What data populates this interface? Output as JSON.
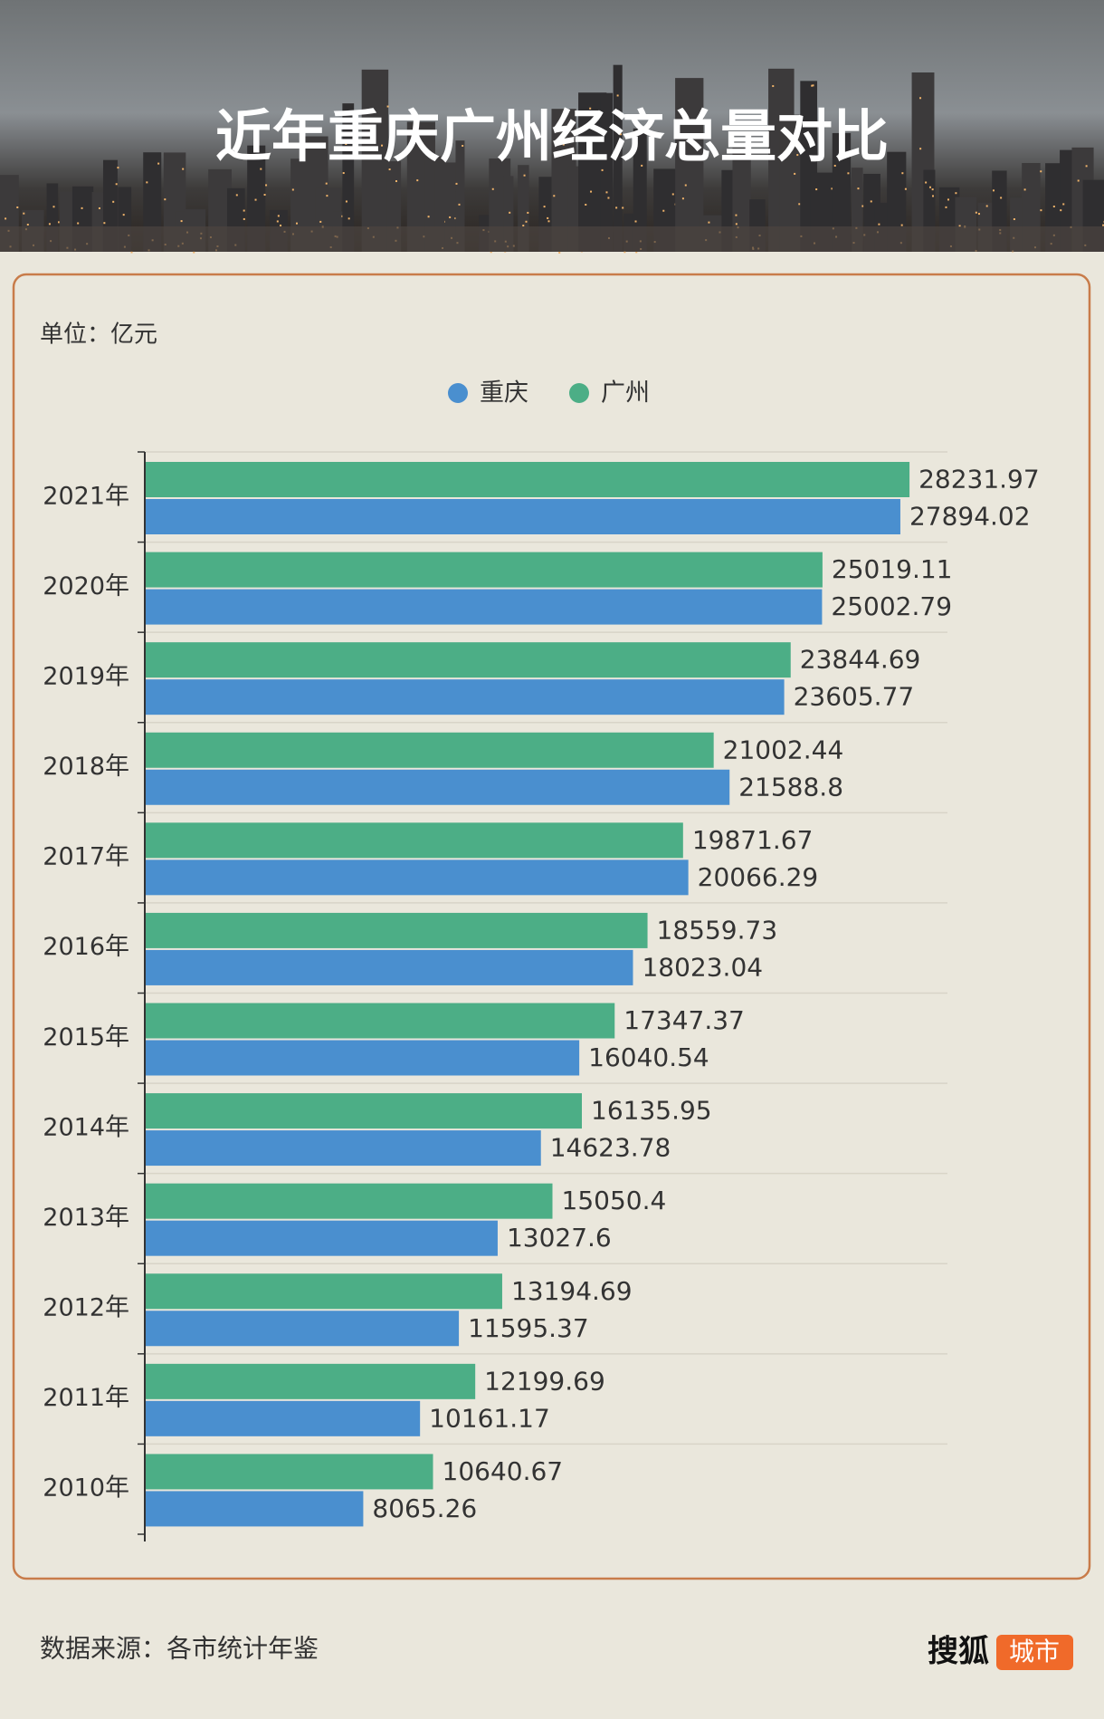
{
  "chart_data": {
    "type": "hbar",
    "title": "近年重庆广州经济总量对比",
    "unit": "单位：亿元",
    "categories": [
      "2021年",
      "2020年",
      "2019年",
      "2018年",
      "2017年",
      "2016年",
      "2015年",
      "2014年",
      "2013年",
      "2012年",
      "2011年",
      "2010年"
    ],
    "series": [
      {
        "name": "重庆",
        "color": "#4a8fcf",
        "values": [
          27894.02,
          25002.79,
          23605.77,
          21588.8,
          20066.29,
          18023.04,
          16040.54,
          14623.78,
          13027.6,
          11595.37,
          10161.17,
          8065.26
        ]
      },
      {
        "name": "广州",
        "color": "#4cae86",
        "values": [
          28231.97,
          25019.11,
          23844.69,
          21002.44,
          19871.67,
          18559.73,
          17347.37,
          16135.95,
          15050.4,
          13194.69,
          12199.69,
          10640.67
        ]
      }
    ],
    "xlim": [
      0,
      30000
    ],
    "legend": "top"
  },
  "source": "数据来源：各市统计年鉴",
  "logo": {
    "brand": "搜狐",
    "channel": "城市"
  }
}
